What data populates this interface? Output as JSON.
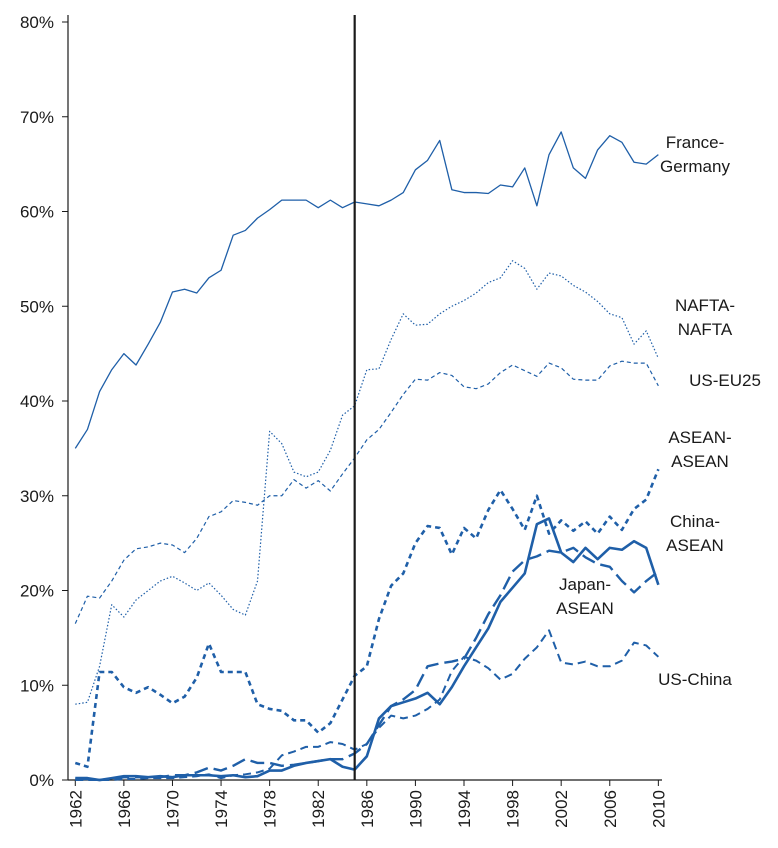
{
  "chart_data": {
    "type": "line",
    "x": [
      1962,
      1963,
      1964,
      1965,
      1966,
      1967,
      1968,
      1969,
      1970,
      1971,
      1972,
      1973,
      1974,
      1975,
      1976,
      1977,
      1978,
      1979,
      1980,
      1981,
      1982,
      1983,
      1984,
      1985,
      1986,
      1987,
      1988,
      1989,
      1990,
      1991,
      1992,
      1993,
      1994,
      1995,
      1996,
      1997,
      1998,
      1999,
      2000,
      2001,
      2002,
      2003,
      2004,
      2005,
      2006,
      2007,
      2008,
      2009,
      2010
    ],
    "xlim": [
      1961.4,
      2010.3
    ],
    "xticks": [
      1962,
      1966,
      1970,
      1974,
      1978,
      1982,
      1986,
      1990,
      1994,
      1998,
      2002,
      2006,
      2010
    ],
    "ylim": [
      0,
      80
    ],
    "yticks": [
      {
        "value": 0,
        "label": "0%"
      },
      {
        "value": 10,
        "label": "10%"
      },
      {
        "value": 20,
        "label": "20%"
      },
      {
        "value": 30,
        "label": "30%"
      },
      {
        "value": 40,
        "label": "40%"
      },
      {
        "value": 50,
        "label": "50%"
      },
      {
        "value": 60,
        "label": "60%"
      },
      {
        "value": 70,
        "label": "70%"
      },
      {
        "value": 80,
        "label": "80%"
      }
    ],
    "vline": {
      "x": 1985,
      "color": "#1a1a1a"
    },
    "series": [
      {
        "name": "France-\nGermany",
        "color": "#1f5fa8",
        "width": 1.3,
        "dash": "none",
        "values": [
          35,
          37,
          41,
          43.3,
          45,
          43.8,
          46,
          48.3,
          51.5,
          51.8,
          51.4,
          53,
          53.8,
          57.5,
          58,
          59.3,
          60.2,
          61.2,
          61.2,
          61.2,
          60.4,
          61.2,
          60.4,
          61,
          60.8,
          60.6,
          61.2,
          62,
          64.4,
          65.4,
          67.5,
          62.3,
          62,
          62,
          61.9,
          62.8,
          62.6,
          64.6,
          60.6,
          66,
          68.4,
          64.6,
          63.5,
          66.5,
          68,
          67.3,
          65.2,
          65,
          66
        ]
      },
      {
        "name": "NAFTA-\nNAFTA",
        "color": "#1f5fa8",
        "width": 1.2,
        "dash": "1.5,2",
        "values": [
          8,
          8.2,
          12,
          18.5,
          17.2,
          19,
          20,
          21,
          21.5,
          20.8,
          20,
          20.8,
          19.5,
          18,
          17.4,
          21,
          36.8,
          35.5,
          32.5,
          32,
          32.5,
          34.8,
          38.5,
          39.5,
          43.3,
          43.4,
          46.5,
          49.2,
          48,
          48.1,
          49.2,
          50,
          50.6,
          51.4,
          52.5,
          53,
          54.8,
          54,
          51.8,
          53.5,
          53.2,
          52.2,
          51.5,
          50.5,
          49.2,
          48.8,
          46,
          47.4,
          44.5
        ]
      },
      {
        "name": "US-EU25",
        "color": "#1f5fa8",
        "width": 1.2,
        "dash": "4,3",
        "values": [
          16.5,
          19.4,
          19.2,
          21,
          23.2,
          24.4,
          24.6,
          25,
          24.8,
          24,
          25.5,
          27.8,
          28.3,
          29.5,
          29.3,
          29,
          30,
          30,
          31.7,
          30.8,
          31.6,
          30.5,
          32.3,
          34,
          35.9,
          37,
          38.8,
          40.7,
          42.3,
          42.2,
          43,
          42.7,
          41.5,
          41.3,
          41.8,
          43,
          43.8,
          43.2,
          42.6,
          44,
          43.5,
          42.3,
          42.2,
          42.2,
          43.7,
          44.2,
          44,
          44,
          41.6
        ]
      },
      {
        "name": "ASEAN-\nASEAN",
        "color": "#1f5fa8",
        "width": 2.6,
        "dash": "5,4",
        "values": [
          1.8,
          1.4,
          11.4,
          11.4,
          9.8,
          9.2,
          9.8,
          9,
          8.1,
          8.8,
          10.8,
          14.4,
          11.4,
          11.4,
          11.4,
          8,
          7.5,
          7.3,
          6.3,
          6.3,
          5,
          6,
          8.5,
          11,
          12,
          17,
          20.5,
          21.8,
          25,
          26.8,
          26.6,
          23.8,
          26.6,
          25.5,
          28.5,
          30.6,
          28.6,
          26.4,
          30,
          26,
          27.4,
          26.3,
          27.3,
          26,
          27.8,
          26.4,
          28.6,
          29.6,
          32.8
        ]
      },
      {
        "name": "China-\nASEAN",
        "color": "#1f5fa8",
        "width": 2.6,
        "dash": "none",
        "values": [
          0.2,
          0.2,
          0,
          0.2,
          0.4,
          0.4,
          0.3,
          0.4,
          0.3,
          0.5,
          0.5,
          0.5,
          0.4,
          0.5,
          0.3,
          0.4,
          1,
          1,
          1.5,
          1.8,
          2,
          2.2,
          1.4,
          1.1,
          2.5,
          6.5,
          7.8,
          8.2,
          8.6,
          9.2,
          8,
          9.8,
          12,
          14,
          16,
          18.8,
          20.3,
          21.8,
          27,
          27.6,
          24,
          23,
          24.5,
          23.3,
          24.5,
          24.3,
          25.2,
          24.5,
          20.6
        ]
      },
      {
        "name": "Japan-\nASEAN",
        "color": "#1f5fa8",
        "width": 2.4,
        "dash": "14,6",
        "values": [
          0.1,
          0.1,
          0,
          0.1,
          0.3,
          0.3,
          0.3,
          0.3,
          0.5,
          0.5,
          0.8,
          1.3,
          1,
          1.5,
          2.2,
          1.8,
          1.8,
          1.5,
          1.6,
          1.8,
          2,
          2.2,
          2.2,
          2.8,
          3.8,
          5.8,
          7.8,
          8.5,
          9.5,
          12,
          12.3,
          12.5,
          12.8,
          15,
          17.5,
          19.5,
          22,
          23.2,
          23.6,
          24.2,
          24,
          24.5,
          23.5,
          22.8,
          22.5,
          21,
          19.8,
          21,
          22
        ]
      },
      {
        "name": "US-China",
        "color": "#1f5fa8",
        "width": 2,
        "dash": "8,5",
        "values": [
          0,
          0,
          0,
          0,
          0.1,
          0.1,
          0.2,
          0.2,
          0.2,
          0.3,
          0.4,
          0.6,
          0.2,
          0.5,
          0.6,
          0.8,
          1.2,
          2.6,
          3,
          3.5,
          3.5,
          4,
          3.8,
          3.2,
          3.8,
          5.5,
          6.8,
          6.5,
          6.8,
          7.5,
          8.5,
          11.5,
          13,
          12.6,
          11.8,
          10.6,
          11.2,
          12.8,
          14,
          15.8,
          12.4,
          12.2,
          12.5,
          12,
          12,
          12.6,
          14.5,
          14.2,
          13
        ]
      }
    ]
  }
}
